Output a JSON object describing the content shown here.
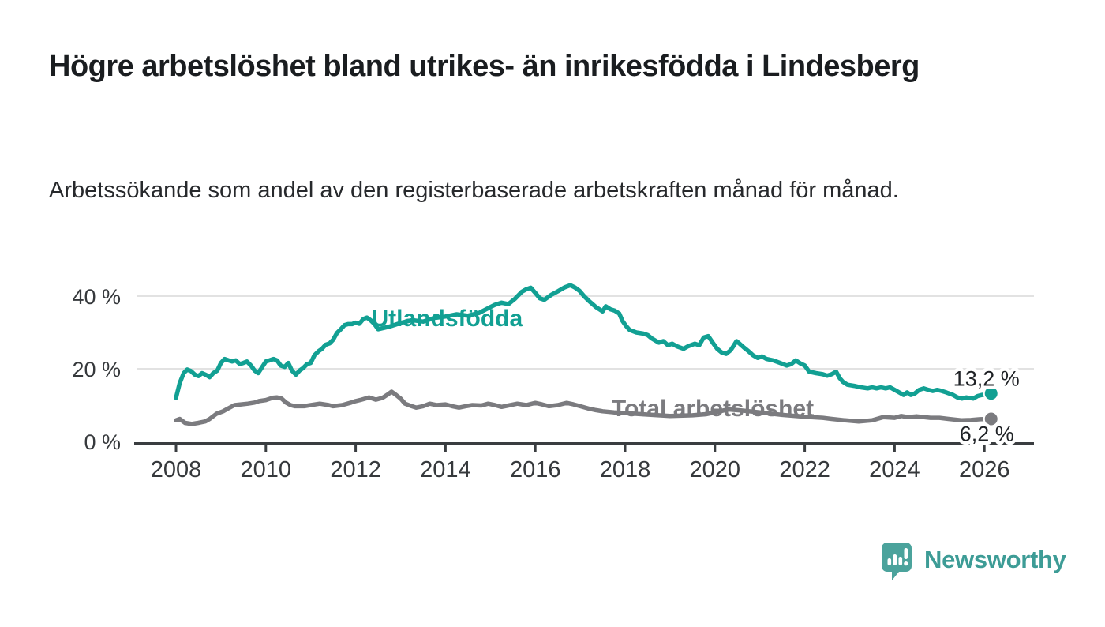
{
  "header": {
    "title": "Högre arbetslöshet bland utrikes- än inrikesfödda i Lindesberg",
    "subtitle": "Arbetssökande som andel av den registerbaserade arbetskraften månad för månad."
  },
  "chart_data": {
    "type": "line",
    "title": "Högre arbetslöshet bland utrikes- än inrikesfödda i Lindesberg",
    "xlabel": "",
    "ylabel": "",
    "unit": "%",
    "grid": "horizontal",
    "legend_position": "inline-labels",
    "xlim": [
      2007.1,
      2027
    ],
    "ylim": [
      0,
      46
    ],
    "x_ticks": [
      {
        "year": 2008,
        "label": "2008"
      },
      {
        "year": 2010,
        "label": "2010"
      },
      {
        "year": 2012,
        "label": "2012"
      },
      {
        "year": 2014,
        "label": "2014"
      },
      {
        "year": 2016,
        "label": "2016"
      },
      {
        "year": 2018,
        "label": "2018"
      },
      {
        "year": 2020,
        "label": "2020"
      },
      {
        "year": 2022,
        "label": "2022"
      },
      {
        "year": 2024,
        "label": "2024"
      },
      {
        "year": 2026,
        "label": "2026"
      }
    ],
    "y_ticks": [
      {
        "value": 0,
        "label": "0 %"
      },
      {
        "value": 20,
        "label": "20 %"
      },
      {
        "value": 40,
        "label": "40 %"
      }
    ],
    "series": [
      {
        "name": "Total arbetslöshet",
        "color": "#7B7B7F",
        "end_value": 6.2,
        "end_label": "6,2 %",
        "label_pos": {
          "year": 2017.7,
          "value": 7.0
        },
        "points": [
          [
            2008.0,
            5.8
          ],
          [
            2008.08,
            6.2
          ],
          [
            2008.2,
            5.1
          ],
          [
            2008.35,
            4.8
          ],
          [
            2008.5,
            5.1
          ],
          [
            2008.65,
            5.5
          ],
          [
            2008.75,
            6.2
          ],
          [
            2008.9,
            7.6
          ],
          [
            2009.05,
            8.3
          ],
          [
            2009.15,
            9.0
          ],
          [
            2009.3,
            10.0
          ],
          [
            2009.45,
            10.2
          ],
          [
            2009.6,
            10.4
          ],
          [
            2009.75,
            10.7
          ],
          [
            2009.85,
            11.1
          ],
          [
            2010.0,
            11.4
          ],
          [
            2010.15,
            12.0
          ],
          [
            2010.25,
            12.1
          ],
          [
            2010.35,
            11.8
          ],
          [
            2010.45,
            10.7
          ],
          [
            2010.55,
            10.0
          ],
          [
            2010.65,
            9.7
          ],
          [
            2010.85,
            9.7
          ],
          [
            2011.0,
            10.0
          ],
          [
            2011.2,
            10.4
          ],
          [
            2011.4,
            10.0
          ],
          [
            2011.5,
            9.7
          ],
          [
            2011.7,
            10.0
          ],
          [
            2011.9,
            10.7
          ],
          [
            2012.0,
            11.1
          ],
          [
            2012.1,
            11.4
          ],
          [
            2012.3,
            12.1
          ],
          [
            2012.45,
            11.5
          ],
          [
            2012.6,
            12.0
          ],
          [
            2012.7,
            12.8
          ],
          [
            2012.8,
            13.7
          ],
          [
            2012.9,
            12.8
          ],
          [
            2013.0,
            11.8
          ],
          [
            2013.1,
            10.4
          ],
          [
            2013.25,
            9.7
          ],
          [
            2013.35,
            9.3
          ],
          [
            2013.5,
            9.7
          ],
          [
            2013.65,
            10.4
          ],
          [
            2013.8,
            10.0
          ],
          [
            2014.0,
            10.2
          ],
          [
            2014.15,
            9.7
          ],
          [
            2014.3,
            9.3
          ],
          [
            2014.45,
            9.7
          ],
          [
            2014.6,
            10.0
          ],
          [
            2014.8,
            9.9
          ],
          [
            2014.95,
            10.4
          ],
          [
            2015.1,
            10.0
          ],
          [
            2015.25,
            9.5
          ],
          [
            2015.4,
            9.9
          ],
          [
            2015.6,
            10.4
          ],
          [
            2015.8,
            10.0
          ],
          [
            2016.0,
            10.6
          ],
          [
            2016.15,
            10.2
          ],
          [
            2016.3,
            9.7
          ],
          [
            2016.5,
            10.0
          ],
          [
            2016.7,
            10.6
          ],
          [
            2016.85,
            10.2
          ],
          [
            2017.0,
            9.7
          ],
          [
            2017.2,
            9.0
          ],
          [
            2017.35,
            8.6
          ],
          [
            2017.5,
            8.3
          ],
          [
            2017.75,
            8.0
          ],
          [
            2018.0,
            7.8
          ],
          [
            2018.5,
            7.4
          ],
          [
            2019.0,
            7.0
          ],
          [
            2019.5,
            7.2
          ],
          [
            2019.8,
            7.5
          ],
          [
            2020.3,
            8.8
          ],
          [
            2020.6,
            8.5
          ],
          [
            2021.0,
            8.0
          ],
          [
            2021.5,
            7.3
          ],
          [
            2022.0,
            6.8
          ],
          [
            2022.4,
            6.5
          ],
          [
            2022.6,
            6.2
          ],
          [
            2022.9,
            5.8
          ],
          [
            2023.2,
            5.5
          ],
          [
            2023.5,
            5.8
          ],
          [
            2023.75,
            6.7
          ],
          [
            2024.0,
            6.5
          ],
          [
            2024.15,
            7.0
          ],
          [
            2024.3,
            6.7
          ],
          [
            2024.5,
            6.9
          ],
          [
            2024.8,
            6.5
          ],
          [
            2025.0,
            6.5
          ],
          [
            2025.2,
            6.2
          ],
          [
            2025.5,
            5.8
          ],
          [
            2025.7,
            5.9
          ],
          [
            2025.9,
            6.1
          ],
          [
            2026.15,
            6.2
          ]
        ]
      },
      {
        "name": "Utlandsfödda",
        "color": "#12A093",
        "end_value": 13.2,
        "end_label": "13,2 %",
        "label_pos": {
          "year": 2012.35,
          "value": 31.7
        },
        "points": [
          [
            2008.0,
            12.0
          ],
          [
            2008.08,
            16.0
          ],
          [
            2008.17,
            18.8
          ],
          [
            2008.25,
            19.8
          ],
          [
            2008.33,
            19.4
          ],
          [
            2008.42,
            18.4
          ],
          [
            2008.5,
            18.0
          ],
          [
            2008.58,
            18.8
          ],
          [
            2008.67,
            18.3
          ],
          [
            2008.75,
            17.7
          ],
          [
            2008.83,
            18.8
          ],
          [
            2008.92,
            19.5
          ],
          [
            2009.0,
            21.6
          ],
          [
            2009.08,
            22.7
          ],
          [
            2009.17,
            22.3
          ],
          [
            2009.25,
            22.0
          ],
          [
            2009.33,
            22.3
          ],
          [
            2009.42,
            21.3
          ],
          [
            2009.5,
            21.6
          ],
          [
            2009.58,
            22.0
          ],
          [
            2009.67,
            20.9
          ],
          [
            2009.75,
            19.5
          ],
          [
            2009.83,
            18.8
          ],
          [
            2009.92,
            20.5
          ],
          [
            2010.0,
            22.0
          ],
          [
            2010.08,
            22.3
          ],
          [
            2010.17,
            22.7
          ],
          [
            2010.25,
            22.3
          ],
          [
            2010.33,
            20.9
          ],
          [
            2010.42,
            20.5
          ],
          [
            2010.5,
            21.6
          ],
          [
            2010.58,
            19.5
          ],
          [
            2010.67,
            18.4
          ],
          [
            2010.75,
            19.5
          ],
          [
            2010.83,
            20.2
          ],
          [
            2010.92,
            21.3
          ],
          [
            2011.0,
            21.6
          ],
          [
            2011.08,
            23.7
          ],
          [
            2011.17,
            24.8
          ],
          [
            2011.25,
            25.5
          ],
          [
            2011.33,
            26.6
          ],
          [
            2011.42,
            27.0
          ],
          [
            2011.5,
            28.0
          ],
          [
            2011.58,
            29.8
          ],
          [
            2011.67,
            30.9
          ],
          [
            2011.75,
            32.0
          ],
          [
            2011.83,
            32.3
          ],
          [
            2011.92,
            32.3
          ],
          [
            2012.0,
            32.7
          ],
          [
            2012.08,
            32.4
          ],
          [
            2012.17,
            33.7
          ],
          [
            2012.25,
            34.1
          ],
          [
            2012.33,
            33.4
          ],
          [
            2012.42,
            32.3
          ],
          [
            2012.5,
            30.9
          ],
          [
            2012.75,
            31.6
          ],
          [
            2013.0,
            32.6
          ],
          [
            2013.25,
            33.4
          ],
          [
            2013.5,
            33.0
          ],
          [
            2013.75,
            34.0
          ],
          [
            2014.0,
            34.4
          ],
          [
            2014.25,
            35.0
          ],
          [
            2014.5,
            34.6
          ],
          [
            2014.75,
            35.4
          ],
          [
            2015.0,
            37.0
          ],
          [
            2015.1,
            37.6
          ],
          [
            2015.25,
            38.2
          ],
          [
            2015.4,
            37.8
          ],
          [
            2015.55,
            39.3
          ],
          [
            2015.7,
            41.2
          ],
          [
            2015.8,
            41.9
          ],
          [
            2015.9,
            42.3
          ],
          [
            2016.0,
            40.9
          ],
          [
            2016.1,
            39.4
          ],
          [
            2016.2,
            39.0
          ],
          [
            2016.35,
            40.3
          ],
          [
            2016.5,
            41.3
          ],
          [
            2016.65,
            42.4
          ],
          [
            2016.78,
            43.0
          ],
          [
            2016.88,
            42.4
          ],
          [
            2016.98,
            41.5
          ],
          [
            2017.1,
            39.8
          ],
          [
            2017.2,
            38.6
          ],
          [
            2017.35,
            37.0
          ],
          [
            2017.5,
            35.8
          ],
          [
            2017.57,
            37.2
          ],
          [
            2017.67,
            36.4
          ],
          [
            2017.77,
            36.0
          ],
          [
            2017.87,
            35.2
          ],
          [
            2017.94,
            33.2
          ],
          [
            2018.02,
            31.8
          ],
          [
            2018.1,
            30.7
          ],
          [
            2018.25,
            30.0
          ],
          [
            2018.4,
            29.7
          ],
          [
            2018.5,
            29.3
          ],
          [
            2018.6,
            28.3
          ],
          [
            2018.75,
            27.2
          ],
          [
            2018.85,
            27.6
          ],
          [
            2018.95,
            26.5
          ],
          [
            2019.05,
            26.9
          ],
          [
            2019.15,
            26.2
          ],
          [
            2019.3,
            25.5
          ],
          [
            2019.4,
            26.2
          ],
          [
            2019.55,
            26.9
          ],
          [
            2019.65,
            26.5
          ],
          [
            2019.75,
            28.6
          ],
          [
            2019.85,
            29.0
          ],
          [
            2019.95,
            27.2
          ],
          [
            2020.05,
            25.5
          ],
          [
            2020.15,
            24.5
          ],
          [
            2020.25,
            24.1
          ],
          [
            2020.35,
            25.1
          ],
          [
            2020.42,
            26.4
          ],
          [
            2020.48,
            27.6
          ],
          [
            2020.55,
            26.9
          ],
          [
            2020.65,
            25.8
          ],
          [
            2020.75,
            24.8
          ],
          [
            2020.85,
            23.7
          ],
          [
            2020.95,
            23.0
          ],
          [
            2021.05,
            23.4
          ],
          [
            2021.15,
            22.7
          ],
          [
            2021.3,
            22.3
          ],
          [
            2021.45,
            21.6
          ],
          [
            2021.6,
            20.9
          ],
          [
            2021.7,
            21.3
          ],
          [
            2021.8,
            22.3
          ],
          [
            2021.9,
            21.5
          ],
          [
            2022.0,
            20.9
          ],
          [
            2022.1,
            19.2
          ],
          [
            2022.25,
            18.8
          ],
          [
            2022.4,
            18.5
          ],
          [
            2022.5,
            18.1
          ],
          [
            2022.6,
            18.5
          ],
          [
            2022.7,
            19.2
          ],
          [
            2022.78,
            17.4
          ],
          [
            2022.85,
            16.4
          ],
          [
            2022.95,
            15.6
          ],
          [
            2023.1,
            15.3
          ],
          [
            2023.25,
            14.9
          ],
          [
            2023.4,
            14.6
          ],
          [
            2023.5,
            14.9
          ],
          [
            2023.6,
            14.6
          ],
          [
            2023.7,
            14.9
          ],
          [
            2023.8,
            14.6
          ],
          [
            2023.9,
            14.9
          ],
          [
            2024.0,
            14.2
          ],
          [
            2024.1,
            13.5
          ],
          [
            2024.2,
            12.8
          ],
          [
            2024.28,
            13.5
          ],
          [
            2024.36,
            12.8
          ],
          [
            2024.45,
            13.2
          ],
          [
            2024.55,
            14.2
          ],
          [
            2024.65,
            14.6
          ],
          [
            2024.75,
            14.2
          ],
          [
            2024.85,
            13.9
          ],
          [
            2024.95,
            14.2
          ],
          [
            2025.05,
            13.9
          ],
          [
            2025.15,
            13.5
          ],
          [
            2025.3,
            12.8
          ],
          [
            2025.4,
            12.1
          ],
          [
            2025.5,
            11.8
          ],
          [
            2025.6,
            12.1
          ],
          [
            2025.75,
            11.8
          ],
          [
            2025.85,
            12.5
          ],
          [
            2025.95,
            12.8
          ],
          [
            2026.15,
            13.2
          ]
        ]
      }
    ],
    "colors": {
      "gridline": "#D9D9D9",
      "axis": "#3A3D40",
      "tick_text": "#36393C",
      "annotation_text": "#1F2226"
    }
  },
  "footer": {
    "brand": "Newsworthy",
    "brand_color": "#3D9C96",
    "logo_icon_color": "#4BA39C"
  }
}
